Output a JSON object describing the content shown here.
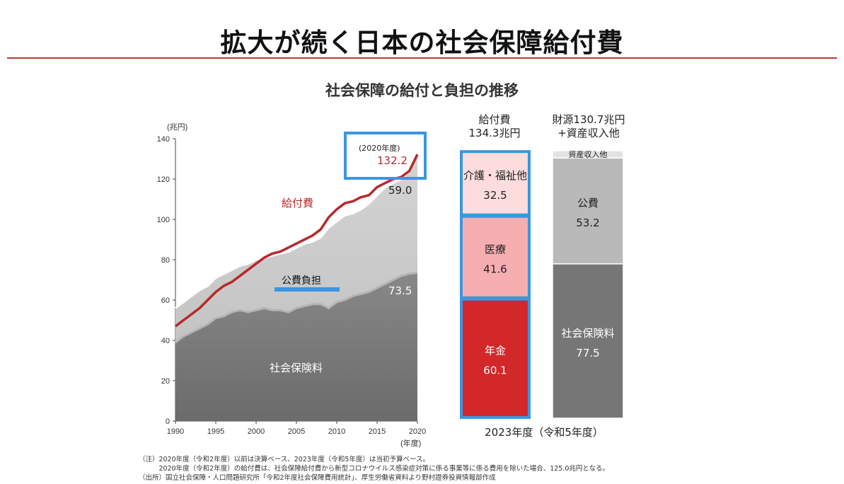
{
  "header": {
    "title": "拡大が続く日本の社会保障給付費",
    "subtitle": "社会保障の給付と負担の推移"
  },
  "chart_data": [
    {
      "type": "area",
      "x": [
        1990,
        1991,
        1992,
        1993,
        1994,
        1995,
        1996,
        1997,
        1998,
        1999,
        2000,
        2001,
        2002,
        2003,
        2004,
        2005,
        2006,
        2007,
        2008,
        2009,
        2010,
        2011,
        2012,
        2013,
        2014,
        2015,
        2016,
        2017,
        2018,
        2019,
        2020
      ],
      "series": [
        {
          "name": "社会保険料",
          "values": [
            39,
            42,
            44,
            46,
            48,
            51,
            52,
            54,
            55,
            54,
            55,
            56,
            55,
            55,
            54,
            56,
            57,
            58,
            58,
            56,
            59,
            60,
            62,
            63,
            64,
            66,
            68,
            70,
            72,
            73,
            73.5
          ]
        },
        {
          "name": "公費負担",
          "values": [
            56,
            59,
            62,
            65,
            67,
            71,
            73,
            75,
            77,
            78,
            80,
            81,
            82,
            83,
            84,
            86,
            88,
            89,
            91,
            96,
            99,
            102,
            103,
            105,
            108,
            112,
            116,
            118,
            120,
            124,
            132.5
          ]
        },
        {
          "name": "給付費",
          "values": [
            47,
            50,
            53,
            56,
            60,
            64,
            67,
            69,
            72,
            75,
            78,
            81,
            83,
            84,
            86,
            88,
            90,
            92,
            95,
            101,
            105,
            108,
            109,
            111,
            112,
            116,
            118,
            120,
            121,
            124,
            132.2
          ]
        }
      ],
      "xlim": [
        1990,
        2020
      ],
      "ylim": [
        0,
        140
      ],
      "y_ticks": [
        "0",
        "20",
        "40",
        "60",
        "80",
        "100",
        "120",
        "140"
      ],
      "x_ticks": [
        "1990",
        "1995",
        "2000",
        "2005",
        "2010",
        "2015",
        "2020"
      ],
      "y_unit": "(兆円)",
      "x_unit": "(年度)",
      "labels": {
        "benefit": "給付費",
        "public": "公費負担",
        "insurance": "社会保険料",
        "public_value": "59.0",
        "insurance_value": "73.5",
        "callout_year": "(2020年度)",
        "callout_value": "132.2"
      },
      "colors": {
        "insurance": "#7a7a7a",
        "public": "#c8c8c8",
        "benefit_line": "#b8282b",
        "highlight": "#3a96e0"
      }
    },
    {
      "type": "bar",
      "bars": [
        {
          "heading_line1": "給付費",
          "heading_line2": "134.3兆円",
          "segments": [
            {
              "name": "年金",
              "value": 60.1,
              "value_label": "60.1",
              "color": "#d3282a"
            },
            {
              "name": "医療",
              "value": 41.6,
              "value_label": "41.6",
              "color": "#f6aeb0"
            },
            {
              "name": "介護・福祉他",
              "value": 32.5,
              "value_label": "32.5",
              "color": "#fcdcdc"
            }
          ]
        },
        {
          "heading_line1": "財源130.7兆円",
          "heading_line2": "+資産収入他",
          "segments": [
            {
              "name": "社会保険料",
              "value": 77.5,
              "value_label": "77.5",
              "color": "#767676"
            },
            {
              "name": "公費",
              "value": 53.2,
              "value_label": "53.2",
              "color": "#b9b9b9"
            },
            {
              "name": "資産収入他",
              "value": 3.6,
              "value_label": "",
              "color": "#e2e2e2"
            }
          ]
        }
      ],
      "caption": "2023年度（令和5年度）"
    }
  ],
  "notes": [
    "（注）2020年度（令和2年度）以前は決算ベース、2023年度（令和5年度）は当初予算ベース。",
    "　　　2020年度（令和2年度）の給付費は、社会保障給付費から新型コロナウイルス感染症対策に係る事業等に係る費用を除いた場合、125.0兆円となる。",
    "（出所）国立社会保障・人口問題研究所「令和2年度社会保障費用統計」、厚生労働省資料より野村證券投資情報部作成"
  ]
}
